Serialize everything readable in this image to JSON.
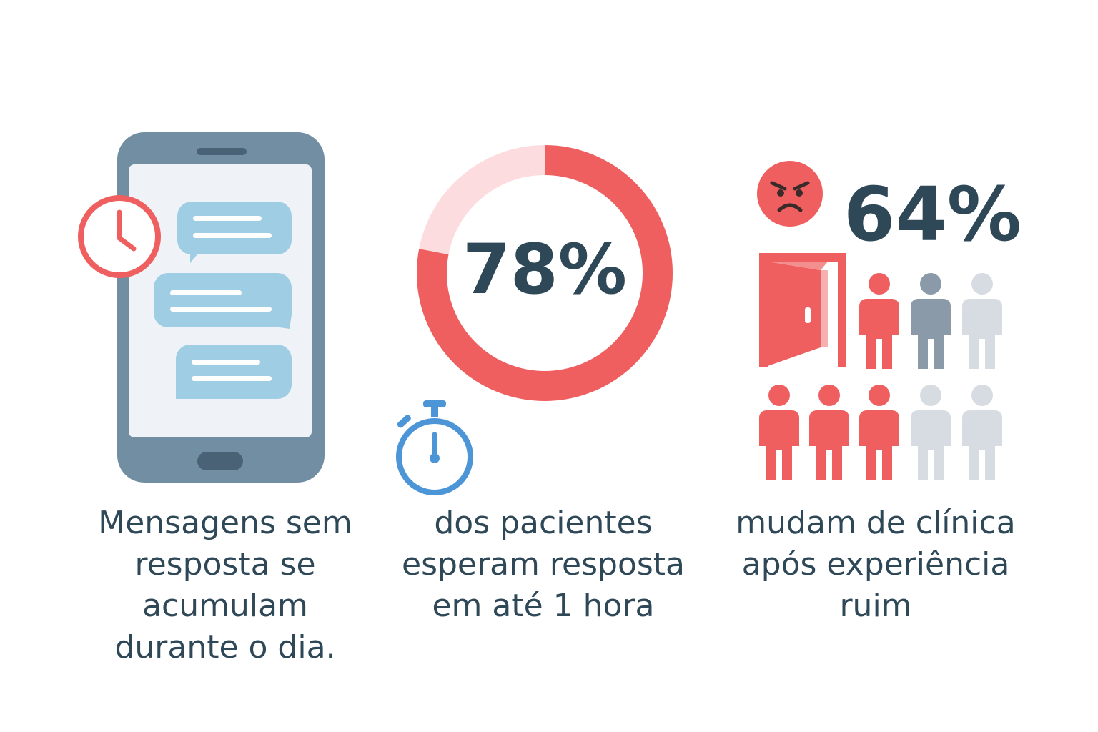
{
  "phone_panel": {
    "caption_lines": [
      "Mensagens sem",
      "resposta se",
      "acumulam",
      "durante o dia."
    ]
  },
  "donut_panel": {
    "stat_label": "78%",
    "stat_value": 78,
    "caption_lines": [
      "dos pacientes",
      "esperam resposta",
      "em até 1 hora"
    ]
  },
  "people_panel": {
    "stat_label": "64%",
    "caption_lines": [
      "mudam de clínica",
      "após experiência",
      "ruim"
    ],
    "people_status": [
      "highlighted",
      "neutral",
      "inactive",
      "highlighted",
      "highlighted",
      "highlighted",
      "inactive",
      "inactive"
    ]
  },
  "colors": {
    "accent_red": "#ef5f5f",
    "light_pink": "#fcdcdf",
    "dark_text": "#2f4858",
    "phone_gray": "#728ea3",
    "bubble_blue": "#9fcde3",
    "timer_blue": "#4c95d6",
    "person_gray": "#8a9aa8",
    "person_light": "#d6dce2"
  },
  "icons": {
    "phone": "smartphone-icon",
    "clock": "clock-icon",
    "stopwatch": "stopwatch-icon",
    "angry_face": "angry-face-icon",
    "door": "open-door-icon",
    "person": "person-icon"
  }
}
